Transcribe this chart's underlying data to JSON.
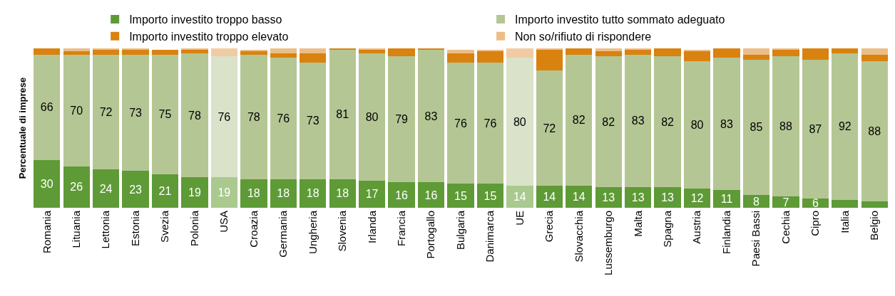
{
  "chart_data": {
    "type": "bar",
    "stacked": true,
    "ylabel": "Percentuale di imprese",
    "ylim": [
      0,
      100
    ],
    "legend": "top",
    "tick_labels": "x",
    "categories": [
      "Romania",
      "Lituania",
      "Lettonia",
      "Estonia",
      "Svezia",
      "Polonia",
      "USA",
      "Croazia",
      "Germania",
      "Ungheria",
      "Slovenia",
      "Irlanda",
      "Francia",
      "Portogallo",
      "Bulgaria",
      "Danimarca",
      "UE",
      "Grecia",
      "Slovacchia",
      "Lussemburgo",
      "Malta",
      "Spagna",
      "Austria",
      "Finlandia",
      "Paesi Bassi",
      "Cechia",
      "Cipro",
      "Italia",
      "Belgio"
    ],
    "series": [
      {
        "name": "Importo investito troppo basso",
        "color": "#5e9a36",
        "colors": [
          "#5e9a36",
          "#5e9a36",
          "#5e9a36",
          "#5e9a36",
          "#5e9a36",
          "#5e9a36",
          "#a9c98f",
          "#5e9a36",
          "#5e9a36",
          "#5e9a36",
          "#5e9a36",
          "#5e9a36",
          "#5e9a36",
          "#5e9a36",
          "#5e9a36",
          "#5e9a36",
          "#a9c98f",
          "#5e9a36",
          "#5e9a36",
          "#5e9a36",
          "#5e9a36",
          "#5e9a36",
          "#5e9a36",
          "#5e9a36",
          "#5e9a36",
          "#5e9a36",
          "#5e9a36",
          "#5e9a36",
          "#5e9a36"
        ],
        "values": [
          30,
          26,
          24,
          23,
          21,
          19,
          19,
          18,
          18,
          18,
          18,
          17,
          16,
          16,
          15,
          15,
          14,
          14,
          14,
          13,
          13,
          13,
          12,
          11,
          8,
          7,
          6,
          5,
          4
        ],
        "value_labels": [
          "30",
          "26",
          "24",
          "23",
          "21",
          "19",
          "19",
          "18",
          "18",
          "18",
          "18",
          "17",
          "16",
          "16",
          "15",
          "15",
          "14",
          "14",
          "14",
          "13",
          "13",
          "13",
          "12",
          "11",
          "8",
          "7",
          "6",
          null,
          null
        ]
      },
      {
        "name": "Importo investito tutto sommato adeguato",
        "color": "#b5c695",
        "colors": [
          "#b5c695",
          "#b5c695",
          "#b5c695",
          "#b5c695",
          "#b5c695",
          "#b5c695",
          "#dae2c9",
          "#b5c695",
          "#b5c695",
          "#b5c695",
          "#b5c695",
          "#b5c695",
          "#b5c695",
          "#b5c695",
          "#b5c695",
          "#b5c695",
          "#dae2c9",
          "#b5c695",
          "#b5c695",
          "#b5c695",
          "#b5c695",
          "#b5c695",
          "#b5c695",
          "#b5c695",
          "#b5c695",
          "#b5c695",
          "#b5c695",
          "#b5c695",
          "#b5c695"
        ],
        "values": [
          66,
          70,
          72,
          73,
          75,
          78,
          76,
          78,
          76,
          73,
          81,
          80,
          79,
          83,
          76,
          76,
          80,
          72,
          82,
          82,
          83,
          82,
          80,
          83,
          85,
          88,
          87,
          92,
          88
        ],
        "value_labels": [
          "66",
          "70",
          "72",
          "73",
          "75",
          "78",
          "76",
          "78",
          "76",
          "73",
          "81",
          "80",
          "79",
          "83",
          "76",
          "76",
          "80",
          "72",
          "82",
          "82",
          "83",
          "82",
          "80",
          "83",
          "85",
          "88",
          "87",
          "92",
          "88"
        ]
      },
      {
        "name": "Importo investito troppo elevato",
        "color": "#d9820f",
        "values": [
          4,
          2,
          3,
          3,
          3,
          2,
          0,
          2,
          3,
          6,
          1,
          2,
          5,
          1,
          6,
          7,
          0,
          13,
          4,
          3,
          3,
          5,
          6,
          6,
          3,
          4,
          7,
          3,
          4
        ]
      },
      {
        "name": "Non so/rifiuto di rispondere",
        "color": "#ecbe87",
        "colors": [
          "#ecbe87",
          "#ecbe87",
          "#ecbe87",
          "#ecbe87",
          "#ecbe87",
          "#ecbe87",
          "#f0cba3",
          "#ecbe87",
          "#ecbe87",
          "#ecbe87",
          "#ecbe87",
          "#ecbe87",
          "#ecbe87",
          "#ecbe87",
          "#ecbe87",
          "#ecbe87",
          "#f0cba3",
          "#ecbe87",
          "#ecbe87",
          "#ecbe87",
          "#ecbe87",
          "#ecbe87",
          "#ecbe87",
          "#ecbe87",
          "#ecbe87",
          "#ecbe87",
          "#ecbe87",
          "#ecbe87",
          "#ecbe87"
        ],
        "values": [
          0,
          2,
          1,
          1,
          0,
          1,
          5,
          1,
          3,
          3,
          0,
          1,
          0,
          0,
          2,
          1,
          6,
          1,
          0,
          2,
          1,
          0,
          1,
          0,
          4,
          1,
          0,
          0,
          4
        ]
      }
    ]
  }
}
